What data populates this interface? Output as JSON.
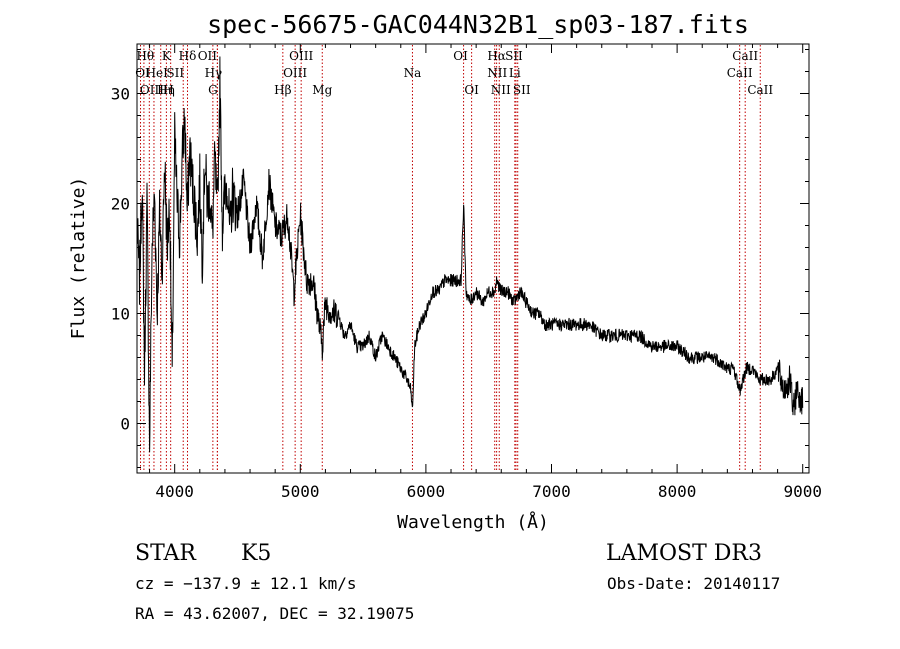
{
  "chart_data": {
    "type": "line",
    "title": "spec-56675-GAC044N32B1_sp03-187.fits",
    "xlabel": "Wavelength (Å)",
    "ylabel": "Flux (relative)",
    "xlim": [
      3700,
      9050
    ],
    "ylim": [
      -4.5,
      34.5
    ],
    "x_ticks": [
      4000,
      5000,
      6000,
      7000,
      8000,
      9000
    ],
    "y_ticks": [
      0,
      10,
      20,
      30
    ],
    "grid": false,
    "line_color": "#000000",
    "marker_color": "#c00000",
    "spectrum": {
      "x": [
        3700,
        3720,
        3740,
        3760,
        3780,
        3800,
        3820,
        3840,
        3860,
        3880,
        3900,
        3920,
        3940,
        3960,
        3980,
        4000,
        4020,
        4040,
        4060,
        4080,
        4100,
        4120,
        4140,
        4160,
        4180,
        4200,
        4220,
        4240,
        4260,
        4280,
        4300,
        4320,
        4340,
        4360,
        4380,
        4400,
        4420,
        4440,
        4460,
        4480,
        4500,
        4550,
        4600,
        4650,
        4700,
        4750,
        4800,
        4850,
        4900,
        4950,
        5000,
        5050,
        5100,
        5150,
        5175,
        5200,
        5250,
        5300,
        5350,
        5400,
        5450,
        5500,
        5550,
        5600,
        5650,
        5700,
        5750,
        5800,
        5850,
        5880,
        5893,
        5910,
        5950,
        6000,
        6050,
        6100,
        6150,
        6200,
        6250,
        6280,
        6300,
        6320,
        6350,
        6400,
        6450,
        6500,
        6550,
        6563,
        6600,
        6650,
        6700,
        6750,
        6800,
        6850,
        6900,
        6950,
        7000,
        7100,
        7200,
        7300,
        7400,
        7500,
        7600,
        7700,
        7800,
        7900,
        8000,
        8100,
        8200,
        8300,
        8400,
        8450,
        8500,
        8550,
        8600,
        8650,
        8700,
        8750,
        8800,
        8850,
        8900,
        8925,
        8950,
        9000
      ],
      "y": [
        18,
        13,
        22,
        5,
        20,
        -2,
        16,
        21,
        10,
        19,
        14,
        24,
        16,
        20,
        4,
        26,
        20,
        17,
        24,
        28,
        19,
        25,
        22,
        20,
        17,
        22,
        15,
        24,
        20,
        21,
        17,
        24,
        19,
        31,
        18,
        21,
        22,
        17,
        21,
        20,
        19,
        22,
        16,
        20,
        15,
        22,
        18,
        17,
        19,
        12,
        19,
        13,
        13,
        9,
        7,
        11,
        10,
        10,
        8,
        9,
        7,
        7,
        8,
        6,
        8,
        7,
        6,
        5,
        4,
        3,
        1,
        7,
        9,
        10,
        12,
        12,
        13,
        13,
        13,
        13,
        20,
        12,
        11,
        12,
        11,
        12,
        12,
        13,
        12,
        12,
        11,
        12,
        11,
        10,
        10,
        9,
        9,
        9,
        9,
        9,
        8,
        8,
        8,
        8,
        7,
        7,
        7,
        6,
        6,
        6,
        5,
        5,
        3,
        5,
        5,
        4,
        4,
        4,
        5,
        3,
        4,
        1,
        3,
        2
      ]
    },
    "lines": [
      {
        "label": "Hθ",
        "x": 3798,
        "row": 0,
        "dx": -4
      },
      {
        "label": "K",
        "x": 3934,
        "row": 0,
        "dx": 0
      },
      {
        "label": "Hδ",
        "x": 4102,
        "row": 0,
        "dx": 0
      },
      {
        "label": "OII",
        "x": 4340,
        "row": 0,
        "dx": -10
      },
      {
        "label": "OIII",
        "x": 5007,
        "row": 0,
        "dx": 0
      },
      {
        "label": "OI",
        "x": 6300,
        "row": 0,
        "dx": -3
      },
      {
        "label": "Hα",
        "x": 6563,
        "row": 0,
        "dx": 0
      },
      {
        "label": "SII",
        "x": 6717,
        "row": 0,
        "dx": -2
      },
      {
        "label": "CaII",
        "x": 8542,
        "row": 0,
        "dx": 0
      },
      {
        "label": "OI",
        "x": 3728,
        "row": 1,
        "dx": 2
      },
      {
        "label": "HeI",
        "x": 3889,
        "row": 1,
        "dx": -4
      },
      {
        "label": "SII",
        "x": 4068,
        "row": 1,
        "dx": -8
      },
      {
        "label": "Hγ",
        "x": 4340,
        "row": 1,
        "dx": -4
      },
      {
        "label": "OIII",
        "x": 4959,
        "row": 1,
        "dx": 0
      },
      {
        "label": "Na",
        "x": 5893,
        "row": 1,
        "dx": 0
      },
      {
        "label": "NII",
        "x": 6584,
        "row": 1,
        "dx": -2
      },
      {
        "label": "Li",
        "x": 6708,
        "row": 1,
        "dx": 0
      },
      {
        "label": "CaII",
        "x": 8498,
        "row": 1,
        "dx": 0
      },
      {
        "label": "OIII",
        "x": 3755,
        "row": 2,
        "dx": 8
      },
      {
        "label": "Hη",
        "x": 3835,
        "row": 2,
        "dx": 12
      },
      {
        "label": "H",
        "x": 3968,
        "row": 2,
        "dx": -2
      },
      {
        "label": "G",
        "x": 4304,
        "row": 2,
        "dx": 0
      },
      {
        "label": "Hβ",
        "x": 4861,
        "row": 2,
        "dx": 0
      },
      {
        "label": "Mg",
        "x": 5175,
        "row": 2,
        "dx": 0
      },
      {
        "label": "OI",
        "x": 6364,
        "row": 2,
        "dx": 0
      },
      {
        "label": "NII",
        "x": 6548,
        "row": 2,
        "dx": 6
      },
      {
        "label": "SII",
        "x": 6731,
        "row": 2,
        "dx": 4
      },
      {
        "label": "CaII",
        "x": 8662,
        "row": 2,
        "dx": 0
      }
    ]
  },
  "footer": {
    "object_class": "STAR",
    "subclass": "K5",
    "survey": "LAMOST DR3",
    "cz": "cz = −137.9 ± 12.1 km/s",
    "obs_date": "Obs-Date: 20140117",
    "coords": "RA =  43.62007, DEC =  32.19075"
  }
}
